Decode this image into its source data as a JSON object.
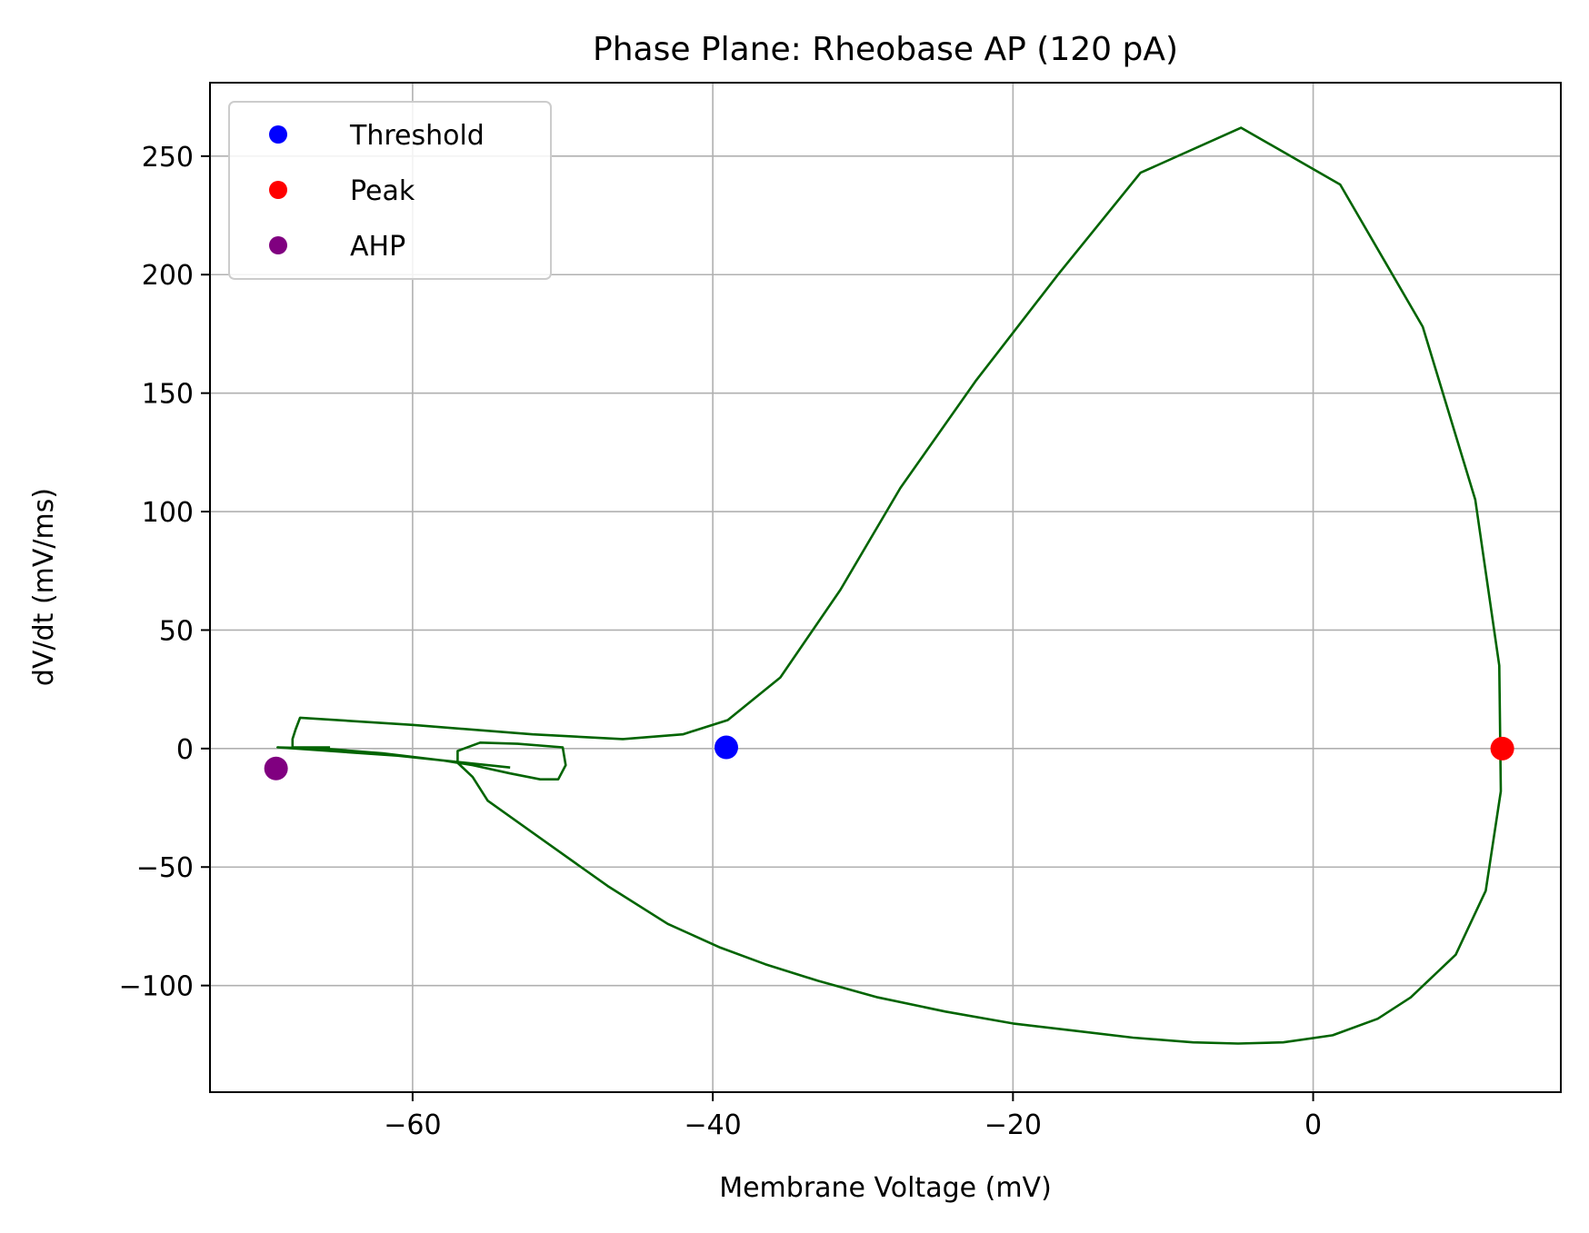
{
  "chart_data": {
    "type": "line",
    "title": "Phase Plane: Rheobase AP (120 pA)",
    "xlabel": "Membrane Voltage (mV)",
    "ylabel": "dV/dt (mV/ms)",
    "xlim": [
      -73.5,
      16.5
    ],
    "ylim": [
      -145,
      281
    ],
    "x_ticks": [
      -60,
      -40,
      -20,
      0
    ],
    "x_tick_labels": [
      "−60",
      "−40",
      "−20",
      "0"
    ],
    "y_ticks": [
      -100,
      -50,
      0,
      50,
      100,
      150,
      200,
      250
    ],
    "y_tick_labels": [
      "−100",
      "−50",
      "0",
      "50",
      "100",
      "150",
      "200",
      "250"
    ],
    "grid": true,
    "legend_position": "top-left",
    "trace": {
      "color": "#006400",
      "x": [
        -65.5,
        -68.0,
        -68.0,
        -67.8,
        -67.5,
        -60.0,
        -52.0,
        -46.0,
        -42.0,
        -39.0,
        -35.5,
        -31.5,
        -27.5,
        -22.5,
        -17.0,
        -11.5,
        -4.8,
        1.8,
        7.3,
        10.8,
        12.4,
        12.5,
        11.5,
        9.5,
        6.5,
        4.3,
        1.3,
        -2.0,
        -5.0,
        -8.0,
        -12.0,
        -16.0,
        -20.0,
        -24.5,
        -29.0,
        -33.0,
        -36.5,
        -39.5,
        -43.0,
        -47.0,
        -51.0,
        -55.0,
        -56.0,
        -57.0,
        -57.0,
        -55.5,
        -53.0,
        -50.0,
        -49.8,
        -50.3,
        -51.5,
        -53.5,
        -56.0,
        -58.0,
        -62.0,
        -66.0,
        -69.0,
        -61.0,
        -53.5
      ],
      "y": [
        0.5,
        0.5,
        4.0,
        8.0,
        13.0,
        10.0,
        6.0,
        4.0,
        6.0,
        12.0,
        30.0,
        67.0,
        110.0,
        155.0,
        200.0,
        243.0,
        262.0,
        238.0,
        178.0,
        105.0,
        35.0,
        -18.0,
        -60.0,
        -87.0,
        -105.0,
        -114.0,
        -121.0,
        -124.0,
        -124.5,
        -124.0,
        -122.0,
        -119.0,
        -116.0,
        -111.0,
        -105.0,
        -98.0,
        -91.0,
        -84.0,
        -74.0,
        -58.0,
        -40.0,
        -22.0,
        -12.0,
        -6.0,
        -1.0,
        2.5,
        2.0,
        0.5,
        -7.0,
        -13.0,
        -13.0,
        -10.5,
        -7.0,
        -5.0,
        -2.0,
        0.0,
        0.5,
        -3.0,
        -8.0
      ]
    },
    "series": [
      {
        "name": "Threshold",
        "color": "#0000ff",
        "x": [
          -39.1
        ],
        "y": [
          0.5
        ]
      },
      {
        "name": "Peak",
        "color": "#ff0000",
        "x": [
          12.6
        ],
        "y": [
          0.0
        ]
      },
      {
        "name": "AHP",
        "color": "#800080",
        "x": [
          -69.1
        ],
        "y": [
          -8.4
        ]
      }
    ]
  }
}
